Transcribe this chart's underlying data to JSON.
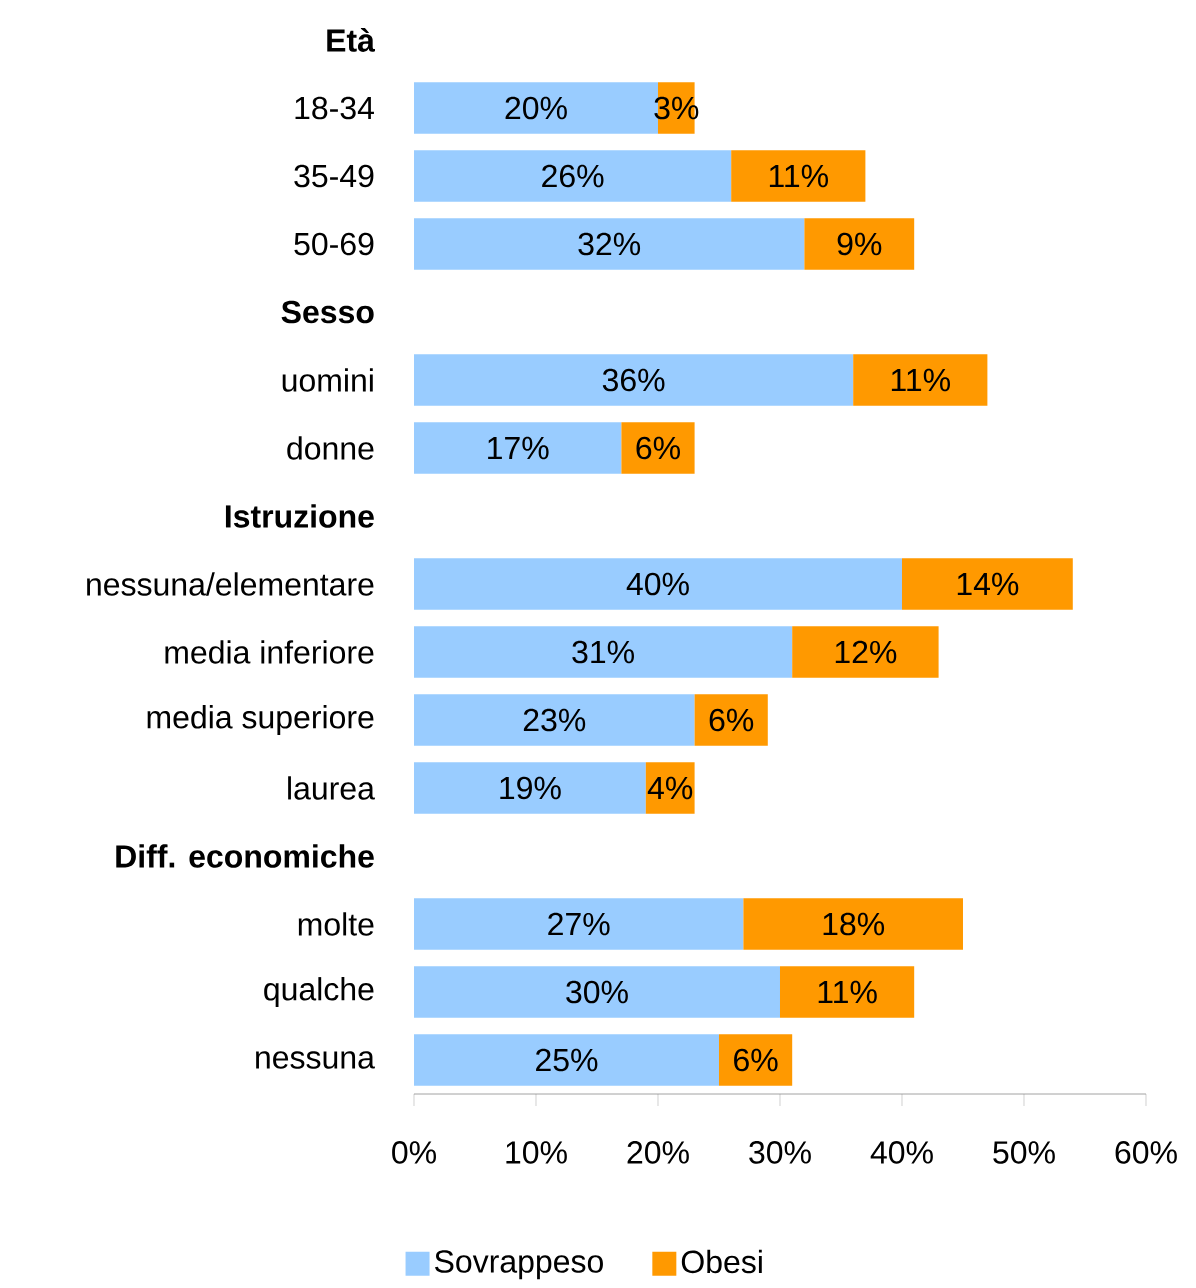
{
  "chart_data": {
    "type": "bar",
    "orientation": "horizontal",
    "stacked": true,
    "legend": "bottom",
    "categories": [
      "Età",
      "18-34",
      "35-49",
      "50-69",
      "Sesso",
      "uomini",
      "donne",
      "Istruzione",
      "nessuna/elementare",
      "media inferiore",
      "media superiore",
      "laurea",
      "Diff. economiche",
      "molte",
      "qualche",
      "nessuna"
    ],
    "series": [
      {
        "name": "Sovrappeso",
        "color": "#99ccff",
        "values": [
          null,
          20,
          26,
          32,
          null,
          36,
          17,
          null,
          40,
          31,
          23,
          19,
          null,
          27,
          30,
          25
        ],
        "value_labels": [
          null,
          "20%",
          "26%",
          "32%",
          null,
          "36%",
          "17%",
          null,
          "40%",
          "31%",
          "23%",
          "19%",
          null,
          "27%",
          "30%",
          "25%"
        ]
      },
      {
        "name": "Obesi",
        "color": "#ff9900",
        "values": [
          null,
          3,
          11,
          9,
          null,
          11,
          6,
          null,
          14,
          12,
          6,
          4,
          null,
          18,
          11,
          6
        ],
        "value_labels": [
          null,
          "3%",
          "11%",
          "9%",
          null,
          "11%",
          "6%",
          null,
          "14%",
          "12%",
          "6%",
          "4%",
          null,
          "18%",
          "11%",
          "6%"
        ]
      }
    ],
    "xlim": [
      0,
      60
    ],
    "xticks": [
      {
        "value": 0,
        "label": "0%"
      },
      {
        "value": 10,
        "label": "10%"
      },
      {
        "value": 20,
        "label": "20%"
      },
      {
        "value": 30,
        "label": "30%"
      },
      {
        "value": 40,
        "label": "40%"
      },
      {
        "value": 50,
        "label": "50%"
      },
      {
        "value": 60,
        "label": "60%"
      }
    ]
  }
}
